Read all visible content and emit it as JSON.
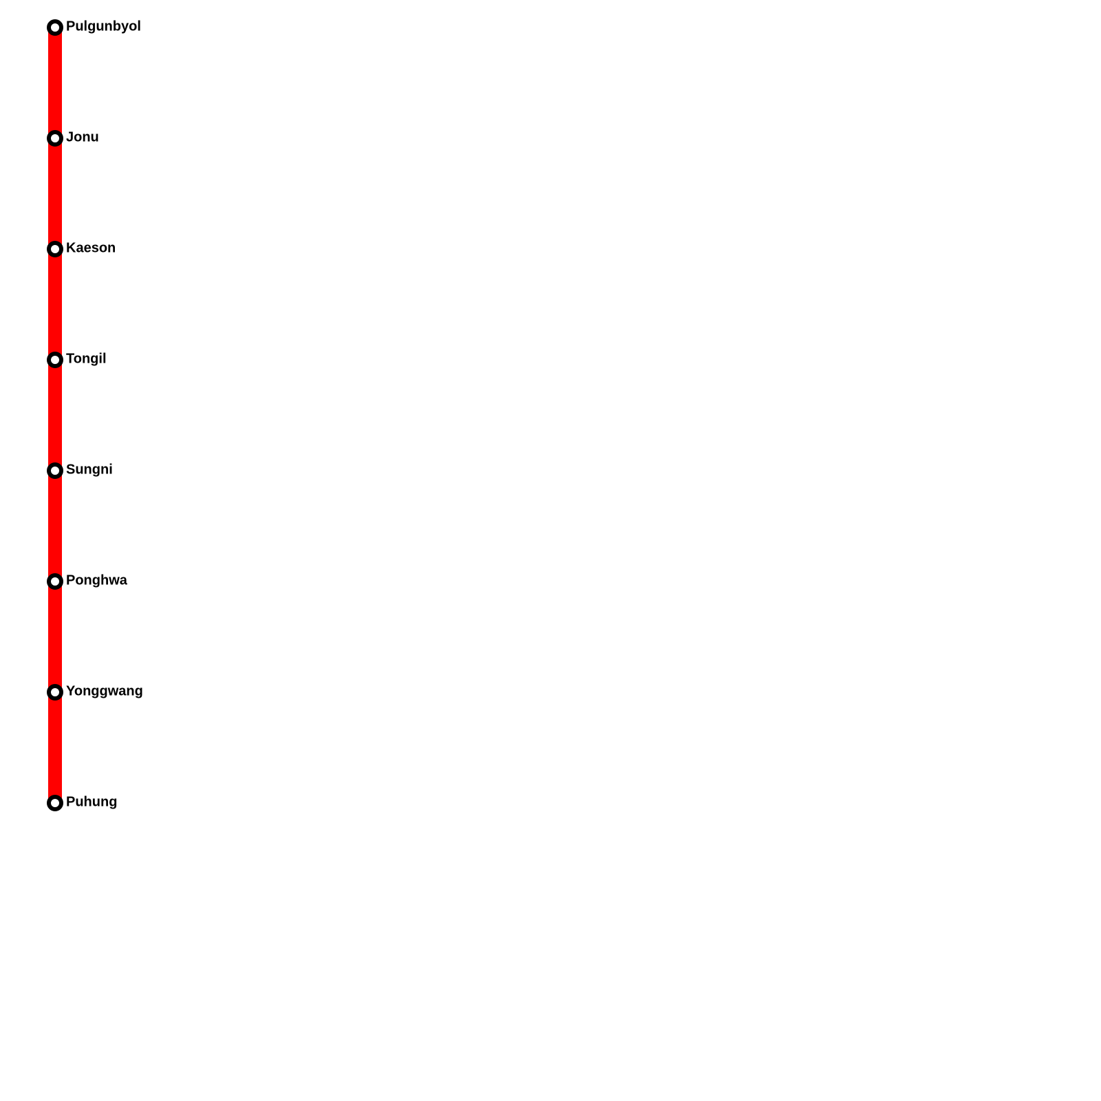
{
  "line": {
    "stations": [
      {
        "name": "Pulgunbyol"
      },
      {
        "name": "Jonu"
      },
      {
        "name": "Kaeson"
      },
      {
        "name": "Tongil"
      },
      {
        "name": "Sungni"
      },
      {
        "name": "Ponghwa"
      },
      {
        "name": "Yonggwang"
      },
      {
        "name": "Puhung"
      }
    ]
  }
}
